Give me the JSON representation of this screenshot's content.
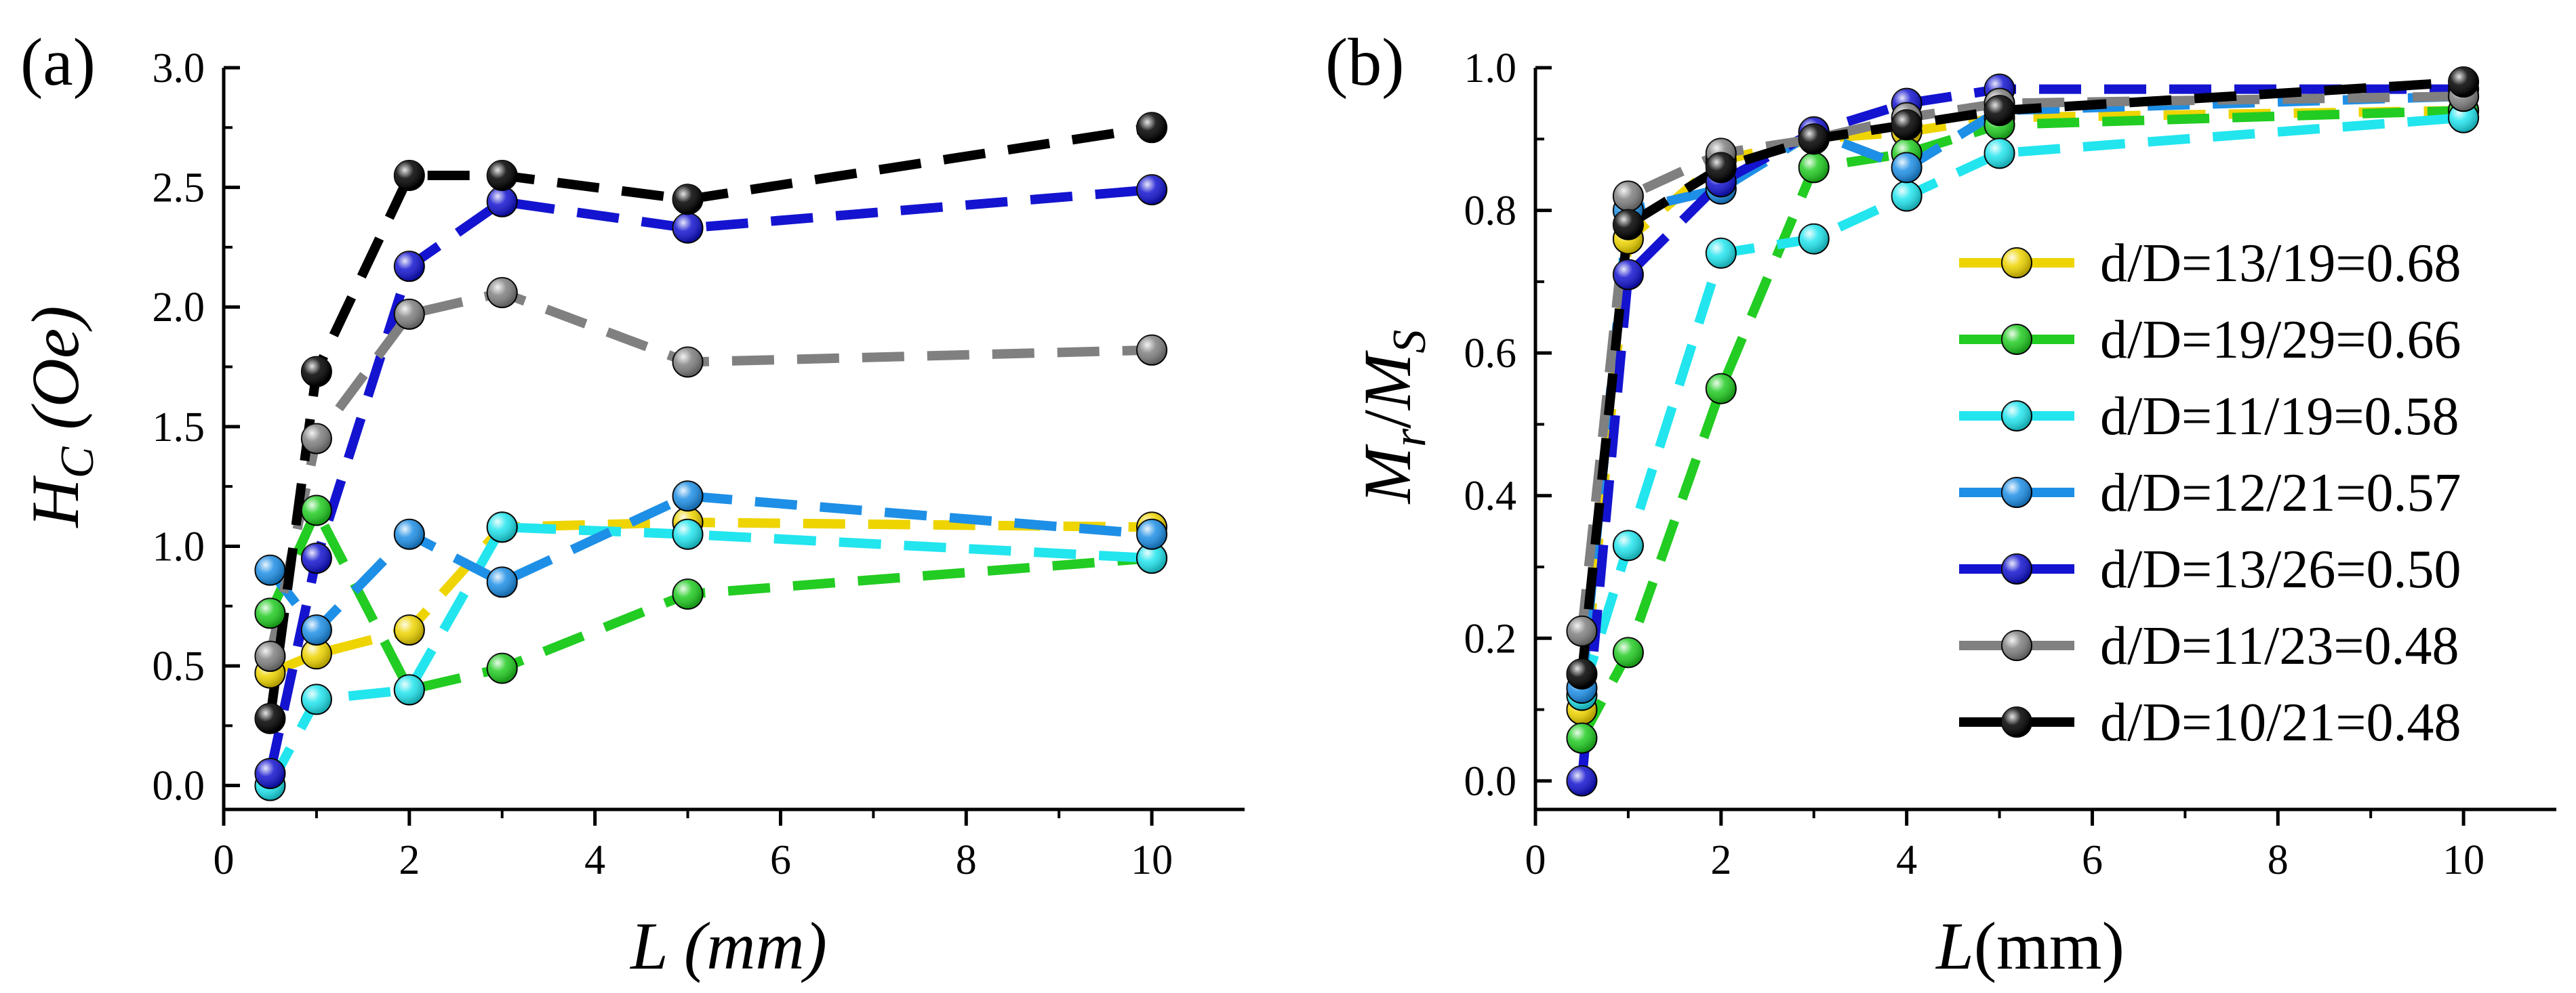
{
  "colors": {
    "d0": "#EED400",
    "d1": "#22CC22",
    "d2": "#22E5EE",
    "d3": "#1E8FE6",
    "d4": "#1414D0",
    "d5": "#808080",
    "d6": "#000000"
  },
  "chart_data": [
    {
      "type": "line",
      "panel_label": "(a)",
      "xlabel": "L (mm)",
      "ylabel": {
        "main": "H",
        "sub": "C",
        "rest": " (Oe)"
      },
      "xlim": [
        0,
        11
      ],
      "ylim": [
        -0.1,
        3.0
      ],
      "xticks": [
        0,
        2,
        4,
        6,
        8,
        10
      ],
      "yticks": [
        0.0,
        0.5,
        1.0,
        1.5,
        2.0,
        2.5,
        3.0
      ],
      "x": [
        0.5,
        1,
        2,
        3,
        5,
        10
      ],
      "series": [
        {
          "color_key": "d0",
          "values": [
            0.47,
            0.55,
            0.65,
            1.08,
            1.1,
            1.08
          ]
        },
        {
          "color_key": "d1",
          "values": [
            0.72,
            1.15,
            0.4,
            0.49,
            0.8,
            0.95
          ]
        },
        {
          "color_key": "d2",
          "values": [
            0.0,
            0.36,
            0.4,
            1.08,
            1.05,
            0.95
          ]
        },
        {
          "color_key": "d3",
          "values": [
            0.9,
            0.65,
            1.05,
            0.85,
            1.21,
            1.05
          ]
        },
        {
          "color_key": "d4",
          "values": [
            0.05,
            0.95,
            2.17,
            2.44,
            2.33,
            2.49
          ]
        },
        {
          "color_key": "d5",
          "values": [
            0.54,
            1.45,
            1.97,
            2.06,
            1.77,
            1.82
          ]
        },
        {
          "color_key": "d6",
          "values": [
            0.28,
            1.73,
            2.55,
            2.55,
            2.45,
            2.75
          ]
        }
      ]
    },
    {
      "type": "line",
      "panel_label": "(b)",
      "xlabel": {
        "main": "L",
        "rest": "(mm)"
      },
      "ylabel": {
        "m1": "M",
        "s1": "r",
        "slash": "/",
        "m2": "M",
        "s2": "S"
      },
      "xlim": [
        0,
        11
      ],
      "ylim": [
        -0.04,
        1.0
      ],
      "xticks": [
        0,
        2,
        4,
        6,
        8,
        10
      ],
      "yticks": [
        0.0,
        0.2,
        0.4,
        0.6,
        0.8,
        1.0
      ],
      "legend_position": "right",
      "x": [
        0.5,
        1,
        2,
        3,
        4,
        5,
        10
      ],
      "series": [
        {
          "name": "d/D=13/19=0.68",
          "color_key": "d0",
          "values": [
            0.1,
            0.76,
            0.87,
            0.9,
            0.91,
            0.93,
            0.94
          ]
        },
        {
          "name": "d/D=19/29=0.66",
          "color_key": "d1",
          "values": [
            0.06,
            0.18,
            0.55,
            0.86,
            0.88,
            0.92,
            0.94
          ]
        },
        {
          "name": "d/D=11/19=0.58",
          "color_key": "d2",
          "values": [
            0.12,
            0.33,
            0.74,
            0.76,
            0.82,
            0.88,
            0.93
          ]
        },
        {
          "name": "d/D=12/21=0.57",
          "color_key": "d3",
          "values": [
            0.13,
            0.8,
            0.83,
            0.91,
            0.86,
            0.94,
            0.96
          ]
        },
        {
          "name": "d/D=13/26=0.50",
          "color_key": "d4",
          "values": [
            0.0,
            0.71,
            0.84,
            0.91,
            0.95,
            0.97,
            0.97
          ]
        },
        {
          "name": "d/D=11/23=0.48",
          "color_key": "d5",
          "values": [
            0.21,
            0.82,
            0.88,
            0.9,
            0.93,
            0.95,
            0.96
          ]
        },
        {
          "name": "d/D=10/21=0.48",
          "color_key": "d6",
          "values": [
            0.15,
            0.78,
            0.86,
            0.9,
            0.92,
            0.94,
            0.98
          ]
        }
      ]
    }
  ]
}
